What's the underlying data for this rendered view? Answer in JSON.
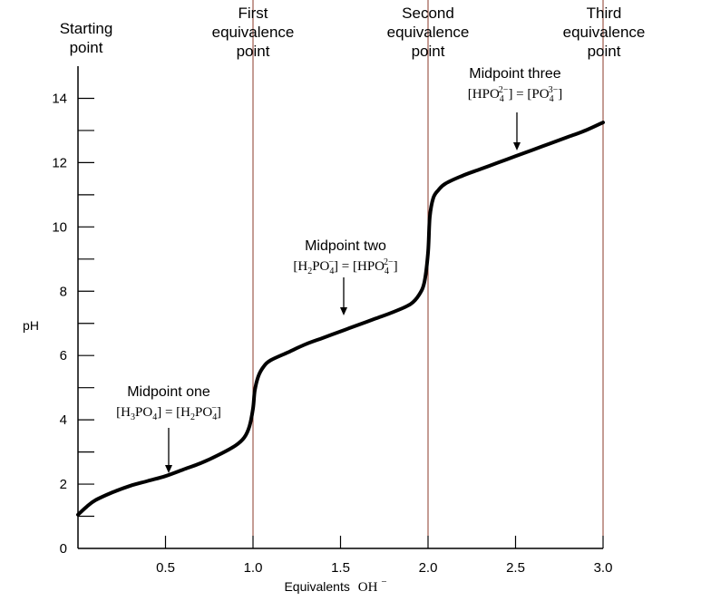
{
  "chart_data": {
    "type": "line",
    "xlabel": "Equivalents",
    "xlabel_formula": "OH",
    "xlabel_formula_sup": "−",
    "ylabel": "pH",
    "xlim": [
      0,
      3.0
    ],
    "ylim": [
      0,
      15
    ],
    "x_ticks": [
      "0.5",
      "1.0",
      "1.5",
      "2.0",
      "2.5",
      "3.0"
    ],
    "y_ticks": [
      "0",
      "2",
      "4",
      "6",
      "8",
      "10",
      "12",
      "14"
    ],
    "grid": false,
    "line_color": "#000000",
    "equivalence_line_color": "#8b3a2a",
    "series": [
      {
        "x": [
          0.0,
          0.05,
          0.1,
          0.2,
          0.3,
          0.4,
          0.5,
          0.6,
          0.7,
          0.8,
          0.9,
          0.95,
          0.98,
          1.0,
          1.01,
          1.03,
          1.06,
          1.1,
          1.2,
          1.3,
          1.4,
          1.5,
          1.6,
          1.7,
          1.8,
          1.9,
          1.95,
          1.98,
          2.0,
          2.01,
          2.03,
          2.06,
          2.1,
          2.2,
          2.3,
          2.4,
          2.5,
          2.6,
          2.7,
          2.8,
          2.9,
          3.0
        ],
        "y": [
          1.05,
          1.3,
          1.5,
          1.75,
          1.95,
          2.1,
          2.25,
          2.45,
          2.65,
          2.9,
          3.2,
          3.45,
          3.8,
          4.35,
          4.9,
          5.35,
          5.65,
          5.85,
          6.1,
          6.35,
          6.55,
          6.75,
          6.95,
          7.15,
          7.35,
          7.6,
          7.9,
          8.3,
          9.2,
          10.3,
          10.9,
          11.15,
          11.35,
          11.6,
          11.8,
          12.0,
          12.2,
          12.4,
          12.6,
          12.8,
          13.0,
          13.25
        ]
      }
    ],
    "headers": [
      {
        "line1": "Starting",
        "line2": "point",
        "line3": ""
      },
      {
        "line1": "First",
        "line2": "equivalence",
        "line3": "point"
      },
      {
        "line1": "Second",
        "line2": "equivalence",
        "line3": "point"
      },
      {
        "line1": "Third",
        "line2": "equivalence",
        "line3": "point"
      }
    ],
    "equivalence_points": [
      1.0,
      2.0,
      3.0
    ],
    "annotations": [
      {
        "title": "Midpoint one",
        "x": 0.5,
        "y": 2.25,
        "lhs": "H",
        "lhs_sub": "3",
        "lhs_rest": "PO",
        "lhs_sub2": "4",
        "lhs_sup": "",
        "rhs": "H",
        "rhs_sub": "2",
        "rhs_rest": "PO",
        "rhs_sub2": "4",
        "rhs_sup": "−"
      },
      {
        "title": "Midpoint two",
        "x": 1.5,
        "y": 6.75,
        "lhs": "H",
        "lhs_sub": "2",
        "lhs_rest": "PO",
        "lhs_sub2": "4",
        "lhs_sup": "−",
        "rhs": "HPO",
        "rhs_sub": "",
        "rhs_rest": "",
        "rhs_sub2": "4",
        "rhs_sup": "2−"
      },
      {
        "title": "Midpoint three",
        "x": 2.5,
        "y": 12.2,
        "lhs": "HPO",
        "lhs_sub": "",
        "lhs_rest": "",
        "lhs_sub2": "4",
        "lhs_sup": "2−",
        "rhs": "PO",
        "rhs_sub": "",
        "rhs_rest": "",
        "rhs_sub2": "4",
        "rhs_sup": "3−"
      }
    ]
  }
}
